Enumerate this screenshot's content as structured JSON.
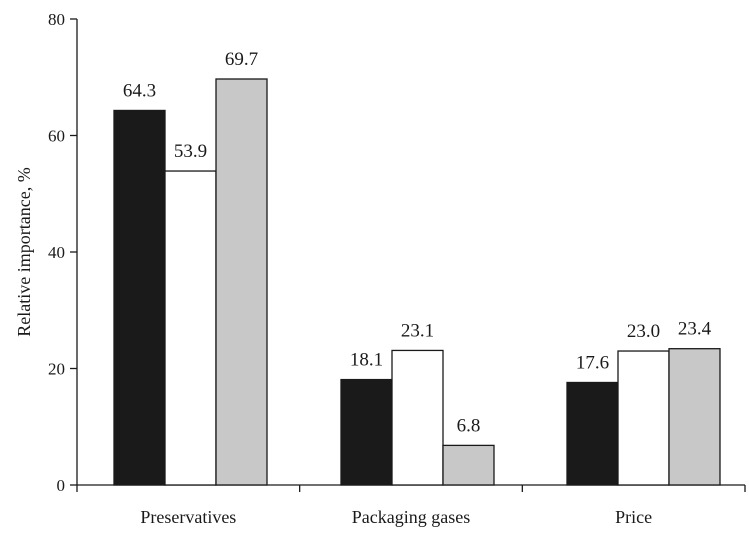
{
  "chart_data": {
    "type": "bar",
    "categories": [
      "Preservatives",
      "Packaging gases",
      "Price"
    ],
    "series": [
      {
        "values": [
          64.3,
          18.1,
          17.6
        ],
        "color": "#1a1a1a"
      },
      {
        "values": [
          53.9,
          23.1,
          23.0
        ],
        "color": "#ffffff"
      },
      {
        "values": [
          69.7,
          6.8,
          23.4
        ],
        "color": "#c8c8c8"
      }
    ],
    "data_labels": [
      [
        "64.3",
        "18.1",
        "17.6"
      ],
      [
        "53.9",
        "23.1",
        "23.0"
      ],
      [
        "69.7",
        "6.8",
        "23.4"
      ]
    ],
    "title": "",
    "xlabel": "",
    "ylabel": "Relative importance, %",
    "ylim": [
      0,
      80
    ],
    "yticks": [
      0,
      20,
      40,
      60,
      80
    ],
    "grid": false,
    "legend": "none"
  }
}
